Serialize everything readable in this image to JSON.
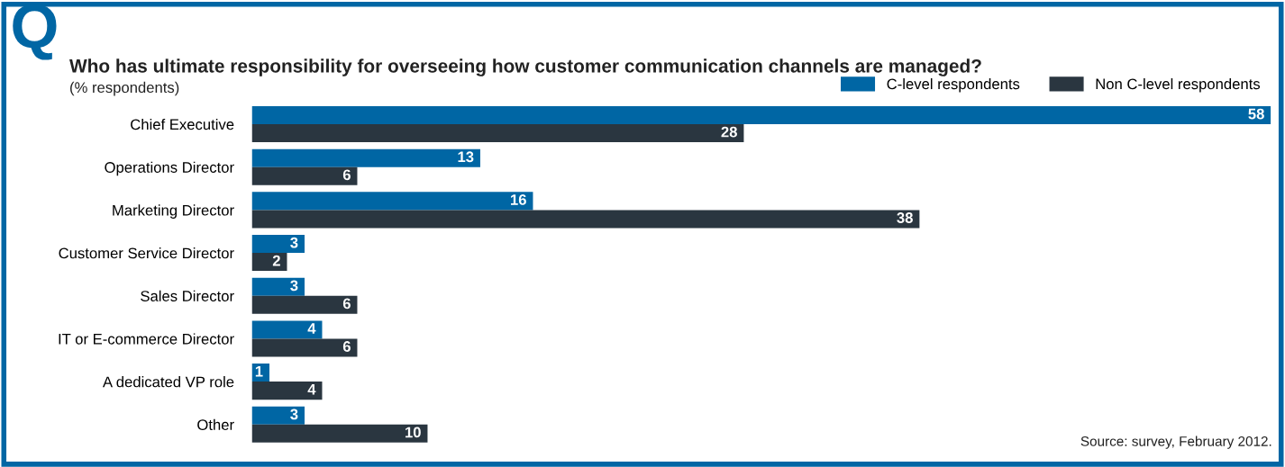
{
  "chart_data": {
    "type": "bar",
    "orientation": "horizontal",
    "title": "Who has ultimate responsibility for overseeing how customer communication channels are managed?",
    "subtitle": "(% respondents)",
    "annotations": [
      "Q",
      "Source: survey, February 2012."
    ],
    "categories": [
      "Chief Executive",
      "Operations Director",
      "Marketing Director",
      "Customer Service Director",
      "Sales Director",
      "IT or E-commerce Director",
      "A dedicated VP role",
      "Other"
    ],
    "series": [
      {
        "name": "C-level respondents",
        "color": "#0066a4",
        "values": [
          58,
          13,
          16,
          3,
          3,
          4,
          1,
          3
        ]
      },
      {
        "name": "Non C-level respondents",
        "color": "#2a3640",
        "values": [
          28,
          6,
          38,
          2,
          6,
          6,
          4,
          10
        ]
      }
    ],
    "data_labels": true,
    "legend": "top right",
    "grid": false,
    "tick_labels": "y"
  }
}
